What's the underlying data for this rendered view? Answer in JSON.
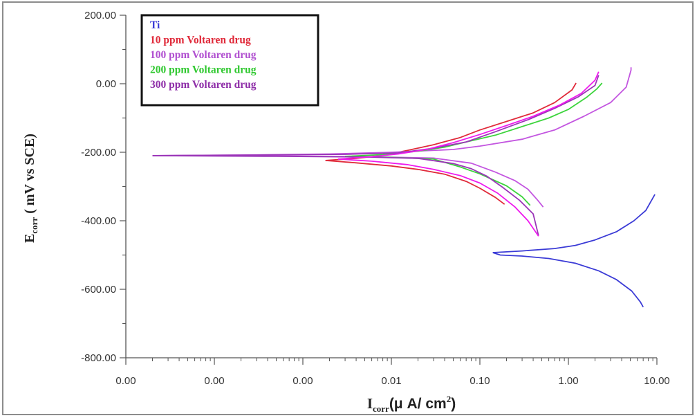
{
  "chart_data": {
    "type": "line",
    "title": "",
    "xlabel": {
      "main": "I",
      "sub": "corr",
      "unit": "(μ A/ cm",
      "sup": "2",
      "close": ")"
    },
    "ylabel": {
      "main": "E",
      "sub": "corr",
      "unit": " ( mV vs SCE)"
    },
    "x_scale": "log",
    "xlim": [
      1e-05,
      10
    ],
    "x_major_ticks": [
      1e-05,
      0.0001,
      0.001,
      0.01,
      0.1,
      1,
      10
    ],
    "x_tick_labels": [
      "0.00",
      "0.00",
      "0.00",
      "0.01",
      "0.10",
      "1.00",
      "10.00"
    ],
    "ylim": [
      -800,
      200
    ],
    "y_ticks": [
      -800,
      -600,
      -400,
      -200,
      0,
      200
    ],
    "y_tick_labels": [
      "-800.00",
      "-600.00",
      "-400.00",
      "-200.00",
      "0.00",
      "200.00"
    ],
    "grid": false,
    "legend_position": "top-left",
    "series": [
      {
        "name": "Ti",
        "color": "#3b3bd6",
        "anodic": [
          [
            0.14,
            -493
          ],
          [
            0.3,
            -488
          ],
          [
            0.7,
            -481
          ],
          [
            1.2,
            -472
          ],
          [
            2,
            -456
          ],
          [
            3.5,
            -432
          ],
          [
            5.5,
            -400
          ],
          [
            7.5,
            -370
          ],
          [
            9.5,
            -323
          ]
        ],
        "cathodic": [
          [
            0.14,
            -493
          ],
          [
            0.17,
            -500
          ],
          [
            0.3,
            -503
          ],
          [
            0.6,
            -510
          ],
          [
            1.2,
            -524
          ],
          [
            2.2,
            -546
          ],
          [
            3.5,
            -572
          ],
          [
            5.2,
            -605
          ],
          [
            6.5,
            -637
          ],
          [
            7,
            -652
          ]
        ]
      },
      {
        "name": "10 ppm Voltaren drug",
        "color": "#e02a3a",
        "anodic": [
          [
            0.0018,
            -224
          ],
          [
            0.004,
            -218
          ],
          [
            0.008,
            -209
          ],
          [
            0.015,
            -195
          ],
          [
            0.03,
            -178
          ],
          [
            0.06,
            -157
          ],
          [
            0.1,
            -135
          ],
          [
            0.2,
            -110
          ],
          [
            0.4,
            -85
          ],
          [
            0.7,
            -55
          ],
          [
            1.1,
            -18
          ],
          [
            1.22,
            2
          ]
        ],
        "cathodic": [
          [
            0.0018,
            -224
          ],
          [
            0.004,
            -231
          ],
          [
            0.01,
            -240
          ],
          [
            0.02,
            -250
          ],
          [
            0.04,
            -264
          ],
          [
            0.07,
            -285
          ],
          [
            0.1,
            -305
          ],
          [
            0.15,
            -332
          ],
          [
            0.19,
            -352
          ]
        ]
      },
      {
        "name": "100 ppm Voltaren drug",
        "color": "#c356e0",
        "anodic": [
          [
            2e-05,
            -210
          ],
          [
            0.0002,
            -208
          ],
          [
            0.002,
            -205
          ],
          [
            0.01,
            -200
          ],
          [
            0.05,
            -192
          ],
          [
            0.1,
            -182
          ],
          [
            0.3,
            -162
          ],
          [
            0.7,
            -135
          ],
          [
            1.5,
            -95
          ],
          [
            3,
            -55
          ],
          [
            4.5,
            -10
          ],
          [
            5.1,
            40
          ],
          [
            5.1,
            48
          ]
        ],
        "cathodic": [
          [
            2e-05,
            -210
          ],
          [
            0.0005,
            -211
          ],
          [
            0.005,
            -213
          ],
          [
            0.03,
            -217
          ],
          [
            0.08,
            -232
          ],
          [
            0.15,
            -258
          ],
          [
            0.25,
            -283
          ],
          [
            0.35,
            -308
          ],
          [
            0.45,
            -340
          ],
          [
            0.52,
            -360
          ]
        ]
      },
      {
        "name": "200 ppm Voltaren drug",
        "color": "#3cd43c",
        "anodic": [
          [
            0.003,
            -212
          ],
          [
            0.008,
            -207
          ],
          [
            0.02,
            -197
          ],
          [
            0.04,
            -185
          ],
          [
            0.07,
            -170
          ],
          [
            0.15,
            -150
          ],
          [
            0.3,
            -125
          ],
          [
            0.6,
            -100
          ],
          [
            1,
            -75
          ],
          [
            1.6,
            -40
          ],
          [
            2.1,
            -15
          ],
          [
            2.4,
            2
          ]
        ],
        "cathodic": [
          [
            0.003,
            -212
          ],
          [
            0.01,
            -215
          ],
          [
            0.03,
            -220
          ],
          [
            0.06,
            -243
          ],
          [
            0.1,
            -263
          ],
          [
            0.2,
            -298
          ],
          [
            0.3,
            -330
          ],
          [
            0.37,
            -355
          ]
        ]
      },
      {
        "name": "300 ppm Voltaren drug",
        "color": "#9b36b8",
        "anodic": [
          [
            2e-05,
            -210
          ],
          [
            0.0003,
            -208
          ],
          [
            0.003,
            -206
          ],
          [
            0.012,
            -202
          ],
          [
            0.03,
            -188
          ],
          [
            0.07,
            -170
          ],
          [
            0.15,
            -140
          ],
          [
            0.35,
            -105
          ],
          [
            0.7,
            -72
          ],
          [
            1.3,
            -38
          ],
          [
            2,
            -5
          ],
          [
            2.2,
            25
          ]
        ],
        "cathodic": [
          [
            2e-05,
            -210
          ],
          [
            0.0005,
            -212
          ],
          [
            0.005,
            -214
          ],
          [
            0.02,
            -218
          ],
          [
            0.05,
            -233
          ],
          [
            0.08,
            -248
          ],
          [
            0.12,
            -270
          ],
          [
            0.18,
            -302
          ],
          [
            0.28,
            -340
          ],
          [
            0.4,
            -380
          ],
          [
            0.46,
            -443
          ]
        ]
      },
      {
        "name": "",
        "color": "#ee1aee",
        "anodic": [
          [
            0.0025,
            -220
          ],
          [
            0.006,
            -213
          ],
          [
            0.012,
            -205
          ],
          [
            0.025,
            -192
          ],
          [
            0.05,
            -172
          ],
          [
            0.1,
            -148
          ],
          [
            0.2,
            -122
          ],
          [
            0.4,
            -95
          ],
          [
            0.8,
            -62
          ],
          [
            1.4,
            -28
          ],
          [
            2,
            10
          ],
          [
            2.2,
            35
          ]
        ],
        "cathodic": [
          [
            0.0025,
            -220
          ],
          [
            0.006,
            -226
          ],
          [
            0.015,
            -236
          ],
          [
            0.03,
            -250
          ],
          [
            0.06,
            -268
          ],
          [
            0.1,
            -290
          ],
          [
            0.16,
            -320
          ],
          [
            0.25,
            -360
          ],
          [
            0.35,
            -400
          ],
          [
            0.46,
            -445
          ]
        ]
      }
    ]
  },
  "legend": {
    "items": [
      {
        "label": "Ti",
        "color": "#3b3bd6"
      },
      {
        "label": "10 ppm Voltaren drug",
        "color": "#e02a3a"
      },
      {
        "label": "100 ppm Voltaren drug",
        "color": "#b04fd0"
      },
      {
        "label": "200 ppm Voltaren drug",
        "color": "#2fc82f"
      },
      {
        "label": "300 ppm Voltaren drug",
        "color": "#8e2ea8"
      }
    ]
  }
}
